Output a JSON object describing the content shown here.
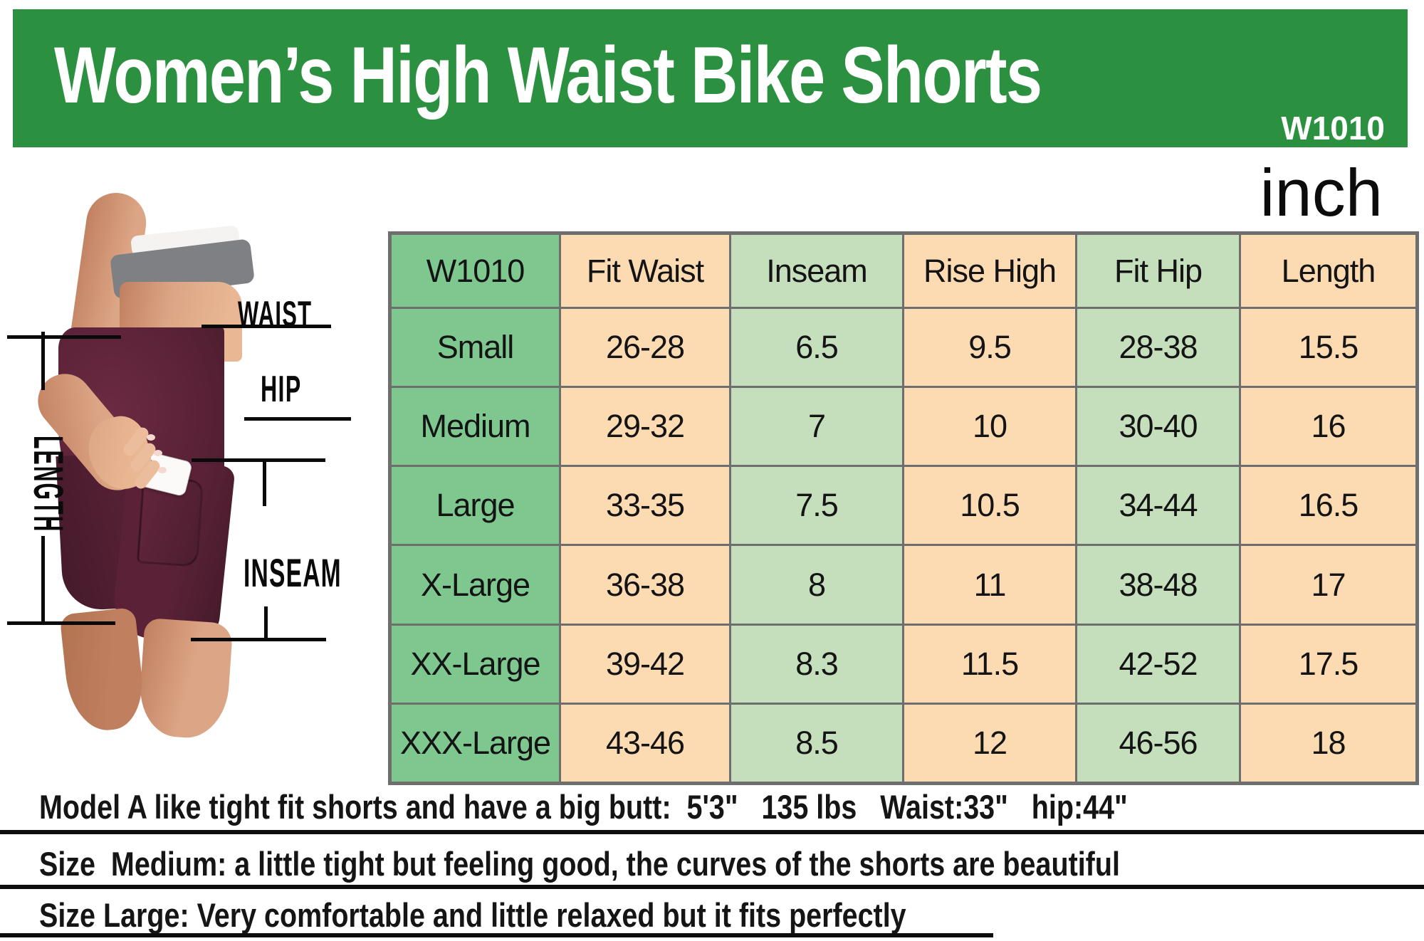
{
  "banner": {
    "title": "Women’s High Waist Bike Shorts",
    "model_code": "W1010"
  },
  "unit_label": "inch",
  "size_chart": {
    "columns": [
      "W1010",
      "Fit Waist",
      "Inseam",
      "Rise High",
      "Fit Hip",
      "Length"
    ],
    "rows": [
      [
        "Small",
        "26-28",
        "6.5",
        "9.5",
        "28-38",
        "15.5"
      ],
      [
        "Medium",
        "29-32",
        "7",
        "10",
        "30-40",
        "16"
      ],
      [
        "Large",
        "33-35",
        "7.5",
        "10.5",
        "34-44",
        "16.5"
      ],
      [
        "X-Large",
        "36-38",
        "8",
        "11",
        "38-48",
        "17"
      ],
      [
        "XX-Large",
        "39-42",
        "8.3",
        "11.5",
        "42-52",
        "17.5"
      ],
      [
        "XXX-Large",
        "43-46",
        "8.5",
        "12",
        "46-56",
        "18"
      ]
    ]
  },
  "diagram": {
    "labels": {
      "waist": "WAIST",
      "hip": "HIP",
      "length": "LENGTH",
      "inseam": "INSEAM"
    }
  },
  "notes": [
    "Model A like tight fit shorts and have a big butt:  5'3\"   135 lbs   Waist:33\"   hip:44\"",
    "Size  Medium: a little tight but feeling good, the curves of the shorts are beautiful",
    "Size Large: Very comfortable and little relaxed but it fits perfectly"
  ],
  "colors": {
    "banner_green": "#2b9140",
    "cell_green": "#7ec890",
    "cell_light_green": "#c5dfbd",
    "cell_peach": "#fcdbb3",
    "table_border": "#6e6e6e",
    "ink": "#111111",
    "shorts_maroon": "#5b2237",
    "shorts_dark": "#451a2b",
    "skin": "#dca585",
    "skin_shadow": "#c08060",
    "band_gray": "#7f8084",
    "top_white": "#f5f3f1"
  }
}
